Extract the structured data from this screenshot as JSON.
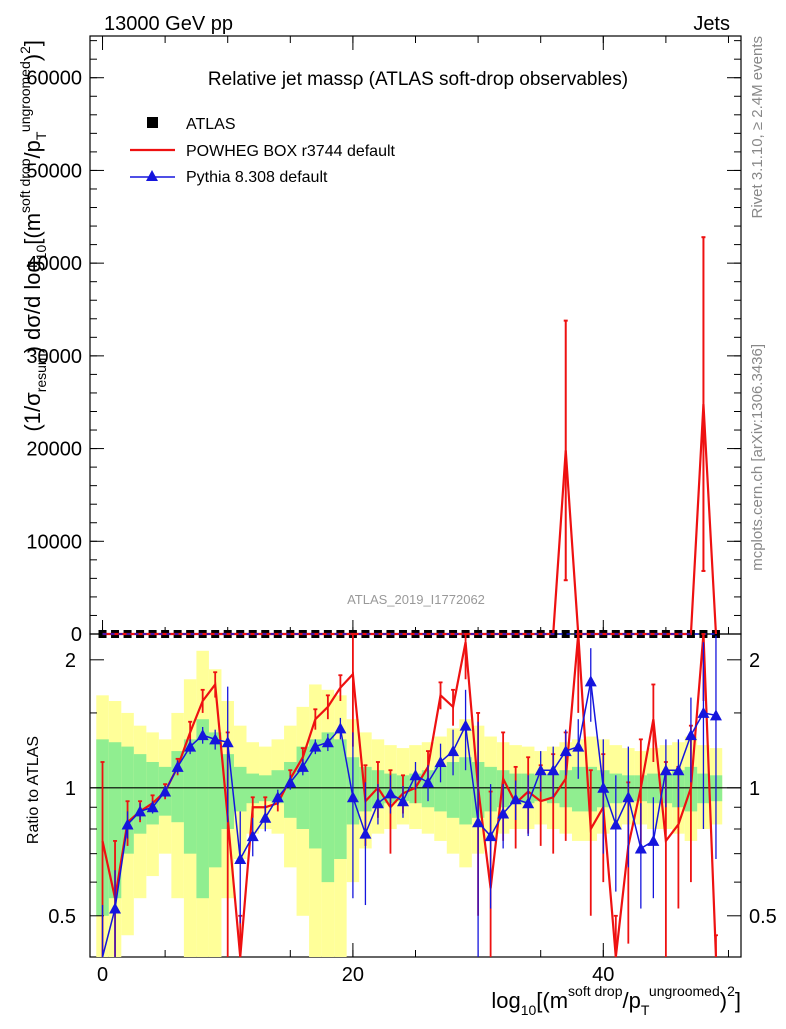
{
  "header": {
    "left": "13000 GeV pp",
    "right": "Jets"
  },
  "side_labels": {
    "rivet": "Rivet 3.1.10, ≥ 2.4M events",
    "mcplots": "mcplots.cern.ch [arXiv:1306.3436]"
  },
  "chart_data": {
    "type": "line",
    "title": "Relative jet massρ (ATLAS soft-drop observables)",
    "analysis_id": "ATLAS_2019_I1772062",
    "xlabel": {
      "main": "log",
      "sub1": "10",
      "part2": "[(m",
      "sup1": "soft drop",
      "part3": "/p",
      "sub2": "T",
      "sup2": "ungroomed",
      "part4": ")",
      "sup3": "2",
      "part5": "]"
    },
    "ylabel": {
      "part1": "(1/σ",
      "sub1": "resum",
      "part2": ") dσ/d log",
      "sub2": "10",
      "part3": "[(m",
      "sup1": "soft drop",
      "part4": "/p",
      "sub3": "T",
      "sup2": "ungroomed",
      "part5": ")",
      "sup3": "2",
      "part6": "]"
    },
    "ratio_ylabel": "Ratio to ATLAS",
    "xlim": [
      -1.0,
      51.0
    ],
    "ylim": [
      0,
      64500
    ],
    "ratio_ylim": [
      0.4,
      2.3
    ],
    "ratio_log_scale": true,
    "x_ticks": [
      "0",
      "20",
      "40"
    ],
    "y_ticks": [
      "0",
      "10000",
      "20000",
      "30000",
      "40000",
      "50000",
      "60000"
    ],
    "ratio_ticks": [
      "0.5",
      "1",
      "2"
    ],
    "legend": {
      "position": "top-left",
      "entries": [
        "ATLAS",
        "POWHEG BOX r3744 default",
        "Pythia 8.308 default"
      ]
    },
    "series": [
      {
        "name": "ATLAS",
        "color": "#000000",
        "values": [
          0,
          0,
          0,
          0,
          0,
          0,
          0,
          0,
          0,
          0,
          0,
          0,
          0,
          0,
          0,
          0,
          0,
          0,
          0,
          0,
          0,
          0,
          0,
          0,
          0,
          0,
          0,
          0,
          0,
          0,
          0,
          0,
          0,
          0,
          0,
          0,
          0,
          0,
          0,
          0,
          0,
          0,
          0,
          0,
          0,
          0,
          0,
          0,
          0,
          0
        ]
      },
      {
        "name": "POWHEG BOX r3744 default",
        "color": "#ee1111",
        "main_values": [
          0,
          0,
          0,
          0,
          0,
          0,
          0,
          0,
          0,
          0,
          0,
          0,
          0,
          0,
          0,
          0,
          0,
          0,
          0,
          0,
          0,
          0,
          0,
          0,
          0,
          0,
          0,
          0,
          0,
          0,
          0,
          0,
          0,
          0,
          0,
          0,
          0,
          19800,
          0,
          0,
          0,
          0,
          0,
          0,
          0,
          0,
          0,
          0,
          24800,
          0
        ],
        "main_errors": [
          0,
          0,
          0,
          0,
          0,
          0,
          0,
          0,
          0,
          0,
          0,
          0,
          0,
          0,
          0,
          0,
          0,
          0,
          0,
          0,
          0,
          0,
          0,
          0,
          0,
          0,
          0,
          0,
          0,
          0,
          0,
          0,
          0,
          0,
          0,
          0,
          0,
          14000,
          0,
          0,
          0,
          0,
          0,
          0,
          0,
          0,
          0,
          0,
          18000,
          0
        ],
        "ratio": [
          0.75,
          0.55,
          0.83,
          0.88,
          0.92,
          0.98,
          1.12,
          1.35,
          1.6,
          1.75,
          0.85,
          0.2,
          0.9,
          0.9,
          0.92,
          1.05,
          1.18,
          1.45,
          1.55,
          1.72,
          1.85,
          0.93,
          1.0,
          0.9,
          0.97,
          1.0,
          1.12,
          1.65,
          1.55,
          2.2,
          1.0,
          0.58,
          1.05,
          0.92,
          0.98,
          0.93,
          0.95,
          1.05,
          2.5,
          0.8,
          0.9,
          0.3,
          0.73,
          1.0,
          1.45,
          0.75,
          0.82,
          1.0,
          2.6,
          0.25
        ],
        "ratio_errors": [
          0.4,
          0.2,
          0.1,
          0.05,
          0.04,
          0.04,
          0.05,
          0.08,
          0.1,
          0.12,
          0.5,
          0.3,
          0.05,
          0.05,
          0.04,
          0.05,
          0.06,
          0.08,
          0.1,
          0.12,
          0.6,
          0.2,
          0.15,
          0.2,
          0.1,
          0.08,
          0.1,
          0.12,
          0.15,
          0.4,
          0.5,
          0.4,
          0.3,
          0.2,
          0.2,
          0.2,
          0.25,
          0.3,
          1.0,
          0.3,
          0.3,
          0.2,
          0.3,
          0.3,
          0.3,
          0.4,
          0.3,
          0.4,
          1.0,
          0.2
        ]
      },
      {
        "name": "Pythia 8.308 default",
        "color": "#1515dd",
        "main_values": [
          0,
          0,
          0,
          0,
          0,
          0,
          0,
          0,
          0,
          0,
          0,
          0,
          0,
          0,
          0,
          0,
          0,
          0,
          0,
          0,
          0,
          0,
          0,
          0,
          0,
          0,
          0,
          0,
          0,
          0,
          0,
          0,
          0,
          0,
          0,
          0,
          0,
          0,
          0,
          0,
          0,
          0,
          0,
          0,
          0,
          0,
          0,
          0,
          0,
          0
        ],
        "ratio": [
          0.38,
          0.52,
          0.82,
          0.88,
          0.9,
          0.98,
          1.12,
          1.25,
          1.33,
          1.3,
          1.28,
          0.68,
          0.77,
          0.85,
          0.95,
          1.03,
          1.12,
          1.25,
          1.28,
          1.38,
          0.95,
          0.78,
          0.92,
          0.97,
          0.93,
          1.07,
          1.03,
          1.15,
          1.22,
          1.4,
          0.83,
          0.77,
          0.87,
          0.94,
          0.92,
          1.1,
          1.1,
          1.22,
          1.25,
          1.78,
          1.0,
          0.82,
          0.95,
          0.72,
          0.75,
          1.1,
          1.1,
          1.33,
          1.5,
          1.48
        ],
        "ratio_errors": [
          0.15,
          0.12,
          0.06,
          0.04,
          0.03,
          0.03,
          0.04,
          0.05,
          0.06,
          0.07,
          0.45,
          0.2,
          0.08,
          0.06,
          0.04,
          0.04,
          0.05,
          0.05,
          0.06,
          0.08,
          0.4,
          0.25,
          0.1,
          0.1,
          0.08,
          0.08,
          0.1,
          0.12,
          0.15,
          0.3,
          0.6,
          0.25,
          0.15,
          0.1,
          0.15,
          0.12,
          0.15,
          0.15,
          0.2,
          0.35,
          0.3,
          0.25,
          0.3,
          0.2,
          0.2,
          0.2,
          0.2,
          0.3,
          0.7,
          0.8
        ]
      }
    ],
    "uncertainty_bands": {
      "inner_color": "#90ee90",
      "outer_color": "#ffff99",
      "inner": [
        [
          0.5,
          1.3
        ],
        [
          0.55,
          1.28
        ],
        [
          0.7,
          1.25
        ],
        [
          0.78,
          1.2
        ],
        [
          0.82,
          1.15
        ],
        [
          0.86,
          1.12
        ],
        [
          0.83,
          1.22
        ],
        [
          0.7,
          1.3
        ],
        [
          0.55,
          1.45
        ],
        [
          0.65,
          1.35
        ],
        [
          0.8,
          1.2
        ],
        [
          0.88,
          1.12
        ],
        [
          0.92,
          1.08
        ],
        [
          0.93,
          1.07
        ],
        [
          0.92,
          1.1
        ],
        [
          0.85,
          1.15
        ],
        [
          0.8,
          1.25
        ],
        [
          0.72,
          1.3
        ],
        [
          0.6,
          1.35
        ],
        [
          0.68,
          1.3
        ],
        [
          0.82,
          1.18
        ],
        [
          0.88,
          1.12
        ],
        [
          0.9,
          1.1
        ],
        [
          0.92,
          1.08
        ],
        [
          0.93,
          1.07
        ],
        [
          0.92,
          1.08
        ],
        [
          0.9,
          1.1
        ],
        [
          0.88,
          1.12
        ],
        [
          0.85,
          1.15
        ],
        [
          0.82,
          1.18
        ],
        [
          0.85,
          1.15
        ],
        [
          0.88,
          1.12
        ],
        [
          0.9,
          1.1
        ],
        [
          0.92,
          1.08
        ],
        [
          0.92,
          1.08
        ],
        [
          0.93,
          1.07
        ],
        [
          0.92,
          1.08
        ],
        [
          0.9,
          1.1
        ],
        [
          0.88,
          1.12
        ],
        [
          0.88,
          1.12
        ],
        [
          0.9,
          1.1
        ],
        [
          0.92,
          1.08
        ],
        [
          0.93,
          1.07
        ],
        [
          0.93,
          1.07
        ],
        [
          0.92,
          1.08
        ],
        [
          0.92,
          1.08
        ],
        [
          0.9,
          1.1
        ],
        [
          0.88,
          1.12
        ],
        [
          0.92,
          1.08
        ],
        [
          0.93,
          1.07
        ]
      ],
      "outer": [
        [
          0.3,
          1.65
        ],
        [
          0.35,
          1.6
        ],
        [
          0.45,
          1.5
        ],
        [
          0.55,
          1.4
        ],
        [
          0.62,
          1.35
        ],
        [
          0.7,
          1.3
        ],
        [
          0.55,
          1.5
        ],
        [
          0.4,
          1.8
        ],
        [
          0.35,
          2.1
        ],
        [
          0.4,
          1.9
        ],
        [
          0.55,
          1.6
        ],
        [
          0.68,
          1.4
        ],
        [
          0.78,
          1.28
        ],
        [
          0.8,
          1.25
        ],
        [
          0.78,
          1.3
        ],
        [
          0.65,
          1.4
        ],
        [
          0.5,
          1.55
        ],
        [
          0.4,
          1.75
        ],
        [
          0.32,
          1.7
        ],
        [
          0.4,
          1.65
        ],
        [
          0.6,
          1.45
        ],
        [
          0.72,
          1.35
        ],
        [
          0.78,
          1.3
        ],
        [
          0.8,
          1.26
        ],
        [
          0.82,
          1.24
        ],
        [
          0.8,
          1.26
        ],
        [
          0.78,
          1.28
        ],
        [
          0.75,
          1.32
        ],
        [
          0.7,
          1.38
        ],
        [
          0.65,
          1.45
        ],
        [
          0.7,
          1.4
        ],
        [
          0.75,
          1.32
        ],
        [
          0.78,
          1.28
        ],
        [
          0.8,
          1.26
        ],
        [
          0.8,
          1.25
        ],
        [
          0.82,
          1.22
        ],
        [
          0.8,
          1.25
        ],
        [
          0.78,
          1.28
        ],
        [
          0.75,
          1.3
        ],
        [
          0.75,
          1.32
        ],
        [
          0.78,
          1.3
        ],
        [
          0.8,
          1.26
        ],
        [
          0.82,
          1.24
        ],
        [
          0.82,
          1.22
        ],
        [
          0.8,
          1.24
        ],
        [
          0.8,
          1.26
        ],
        [
          0.78,
          1.28
        ],
        [
          0.75,
          1.32
        ],
        [
          0.8,
          1.26
        ],
        [
          0.82,
          1.24
        ]
      ]
    }
  }
}
